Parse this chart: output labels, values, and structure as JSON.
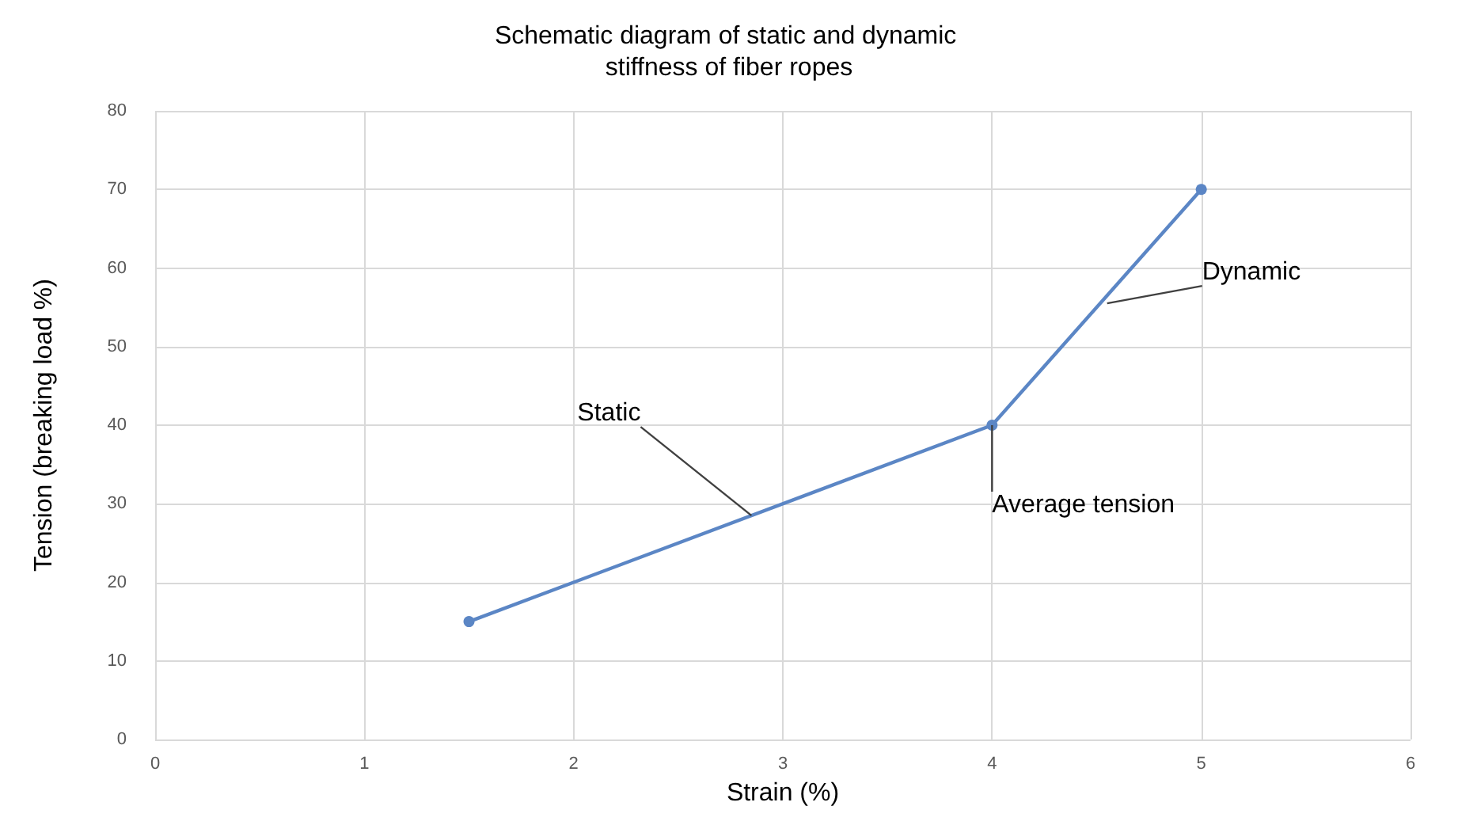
{
  "chart_data": {
    "type": "line",
    "title": "Schematic diagram of static and dynamic stiffness of fiber ropes",
    "xlabel": "Strain (%)",
    "ylabel": "Tension (breaking load %)",
    "x": [
      1.5,
      4,
      5
    ],
    "series": [
      {
        "color": "#5b86c5",
        "values": [
          15,
          40,
          70
        ]
      }
    ],
    "xlim": [
      0,
      6
    ],
    "xticks": [
      0,
      1,
      2,
      3,
      4,
      5,
      6
    ],
    "ylim": [
      0,
      80
    ],
    "yticks": [
      0,
      10,
      20,
      30,
      40,
      50,
      60,
      70,
      80
    ],
    "grid": true,
    "marker": "circle",
    "line_style": "solid",
    "annotations": [
      {
        "text": "Static",
        "x": 2.85,
        "y": 28.5
      },
      {
        "text": "Dynamic",
        "x": 4.55,
        "y": 55.5
      },
      {
        "text": "Average tension",
        "x": 4,
        "y": 40
      }
    ]
  }
}
